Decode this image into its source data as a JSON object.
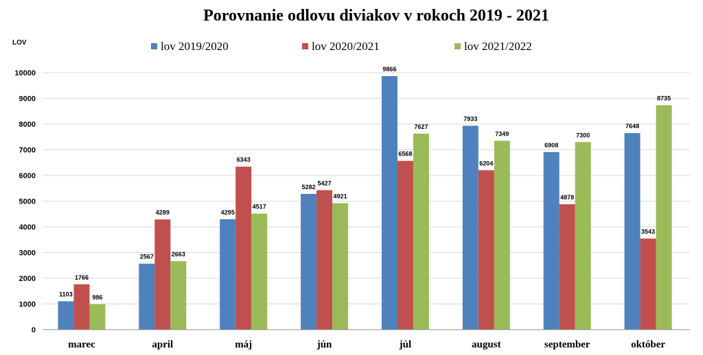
{
  "chart_data": {
    "type": "bar",
    "title": "Porovnanie odlovu diviakov v rokoch 2019 - 2021",
    "ylabel": "LOV",
    "xlabel": "",
    "ylim": [
      0,
      10000
    ],
    "ytick_step": 1000,
    "grid": true,
    "legend_position": "top",
    "categories": [
      "marec",
      "april",
      "máj",
      "jún",
      "júl",
      "august",
      "september",
      "október"
    ],
    "series": [
      {
        "name": "lov 2019/2020",
        "color": "#4f81bd",
        "values": [
          1103,
          2567,
          4295,
          5282,
          9866,
          7933,
          6908,
          7648
        ]
      },
      {
        "name": "lov 2020/2021",
        "color": "#c0504d",
        "values": [
          1766,
          4289,
          6343,
          5427,
          6568,
          6204,
          4878,
          3543
        ]
      },
      {
        "name": "lov 2021/2022",
        "color": "#9bbb59",
        "values": [
          986,
          2663,
          4517,
          4921,
          7627,
          7349,
          7300,
          8735
        ]
      }
    ]
  }
}
